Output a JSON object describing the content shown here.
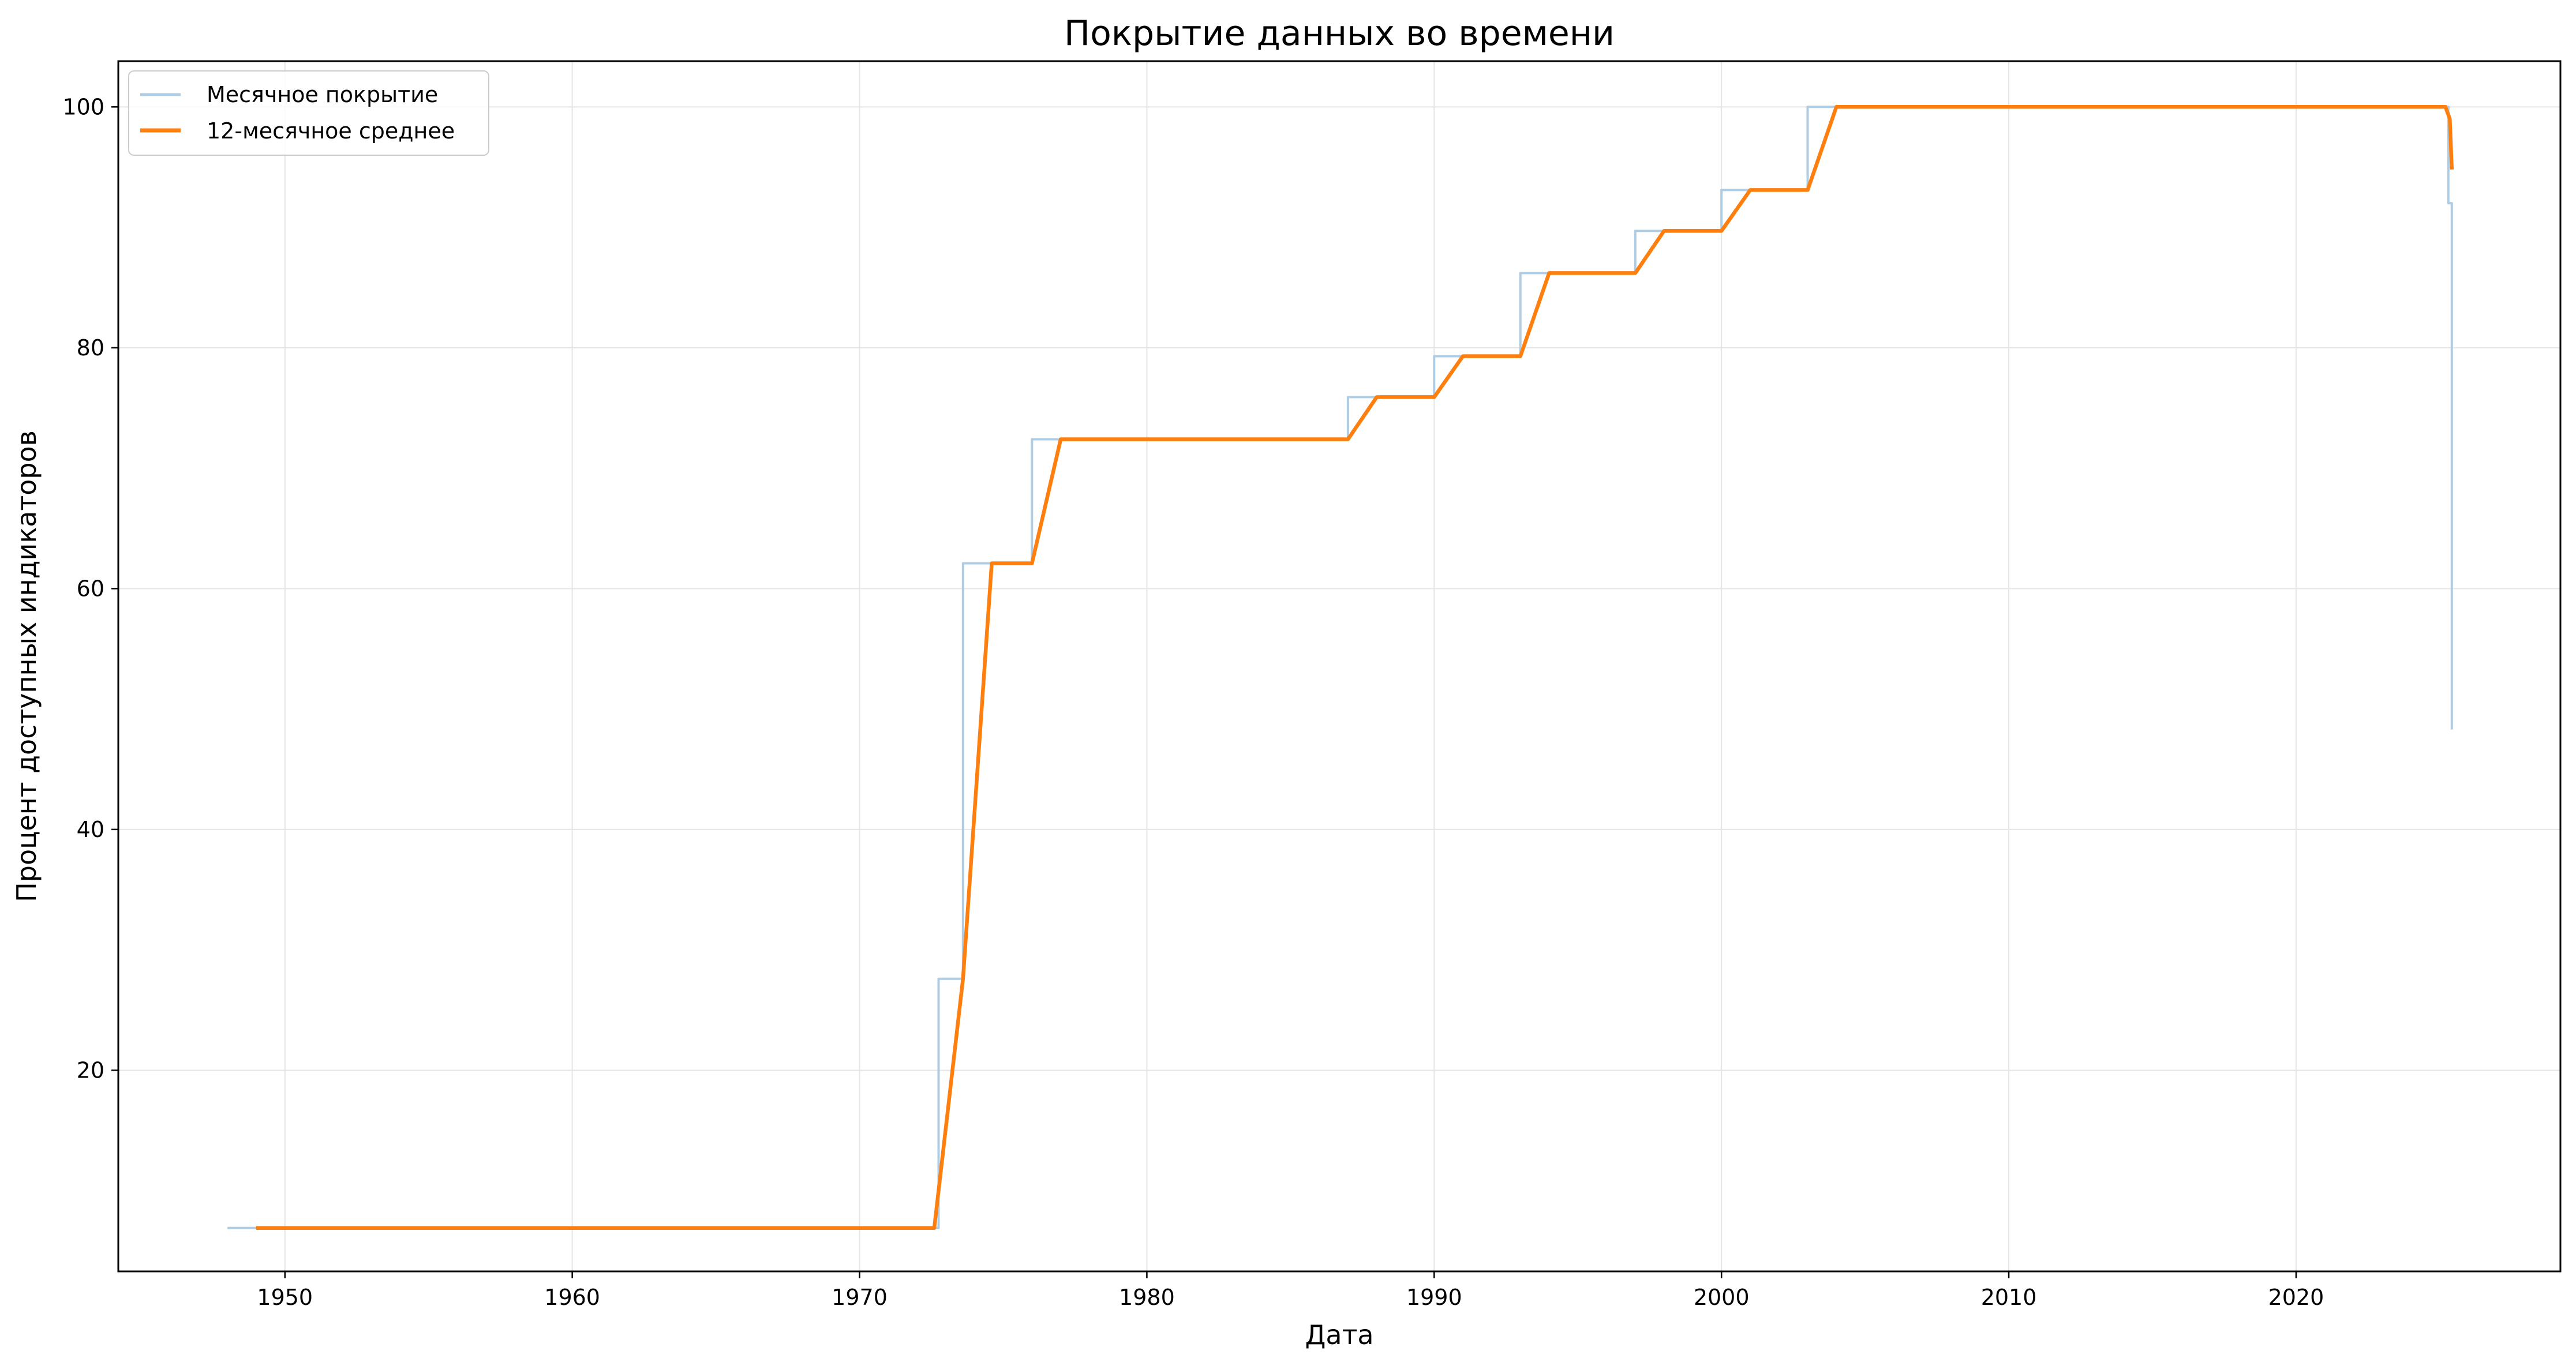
{
  "chart_data": {
    "type": "line",
    "title": "Покрытие данных во времени",
    "xlabel": "Дата",
    "ylabel": "Процент доступных индикаторов",
    "xlim": [
      1944.2,
      2029.2
    ],
    "ylim": [
      3.3,
      103.8
    ],
    "x_ticks": [
      1950,
      1960,
      1970,
      1980,
      1990,
      2000,
      2010,
      2020
    ],
    "y_ticks": [
      20,
      40,
      60,
      80,
      100
    ],
    "grid": true,
    "legend_position": "top-left",
    "series": [
      {
        "name": "Месячное покрытие",
        "color": "#aecde4",
        "line_style": "step",
        "x": [
          1948.0,
          1972.75,
          1973.6,
          1976.0,
          1987.0,
          1990.0,
          1993.0,
          1997.0,
          2000.0,
          2003.0,
          2025.3,
          2025.42
        ],
        "y": [
          6.9,
          27.6,
          62.1,
          72.4,
          75.9,
          79.3,
          86.2,
          89.7,
          93.1,
          100.0,
          92.0,
          48.3
        ]
      },
      {
        "name": "12-месячное среднее",
        "color": "#ff7f0e",
        "line_style": "linear",
        "x": [
          1949.0,
          1972.6,
          1973.6,
          1974.6,
          1976.0,
          1977.0,
          1987.0,
          1988.0,
          1990.0,
          1991.0,
          1993.0,
          1994.0,
          1997.0,
          1998.0,
          2000.0,
          2001.0,
          2003.0,
          2004.0,
          2025.2,
          2025.35,
          2025.42
        ],
        "y": [
          6.9,
          6.9,
          27.6,
          62.1,
          62.1,
          72.4,
          72.4,
          75.9,
          75.9,
          79.3,
          79.3,
          86.2,
          86.2,
          89.7,
          89.7,
          93.1,
          93.1,
          100.0,
          100.0,
          99.0,
          94.8
        ]
      }
    ]
  }
}
